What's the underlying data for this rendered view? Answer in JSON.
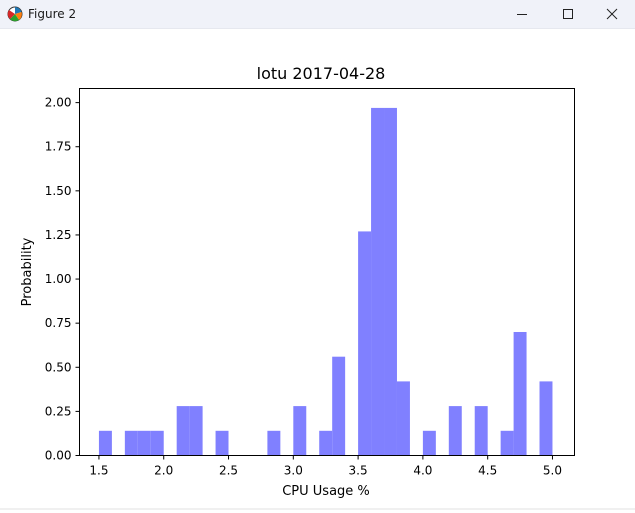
{
  "window": {
    "title": "Figure 2",
    "app_icon": "matplotlib-figure-icon",
    "controls": [
      "minimize-icon",
      "maximize-icon",
      "close-icon"
    ]
  },
  "chart_data": {
    "type": "bar",
    "title": "lotu 2017-04-28",
    "xlabel": "CPU Usage %",
    "ylabel": "Probability",
    "xlim": [
      1.35,
      5.17
    ],
    "ylim": [
      0.0,
      2.08
    ],
    "xticks": [
      1.5,
      2.0,
      2.5,
      3.0,
      3.5,
      4.0,
      4.5,
      5.0
    ],
    "xtick_labels": [
      "1.5",
      "2.0",
      "2.5",
      "3.0",
      "3.5",
      "4.0",
      "4.5",
      "5.0"
    ],
    "yticks": [
      0.0,
      0.25,
      0.5,
      0.75,
      1.0,
      1.25,
      1.5,
      1.75,
      2.0
    ],
    "ytick_labels": [
      "0.00",
      "0.25",
      "0.50",
      "0.75",
      "1.00",
      "1.25",
      "1.50",
      "1.75",
      "2.00"
    ],
    "color": "#8080ff",
    "bin_width": 0.1,
    "bins": [
      {
        "x0": 1.5,
        "x1": 1.6,
        "value": 0.14
      },
      {
        "x0": 1.7,
        "x1": 1.8,
        "value": 0.14
      },
      {
        "x0": 1.8,
        "x1": 1.9,
        "value": 0.14
      },
      {
        "x0": 1.9,
        "x1": 2.0,
        "value": 0.14
      },
      {
        "x0": 2.1,
        "x1": 2.2,
        "value": 0.28
      },
      {
        "x0": 2.2,
        "x1": 2.3,
        "value": 0.28
      },
      {
        "x0": 2.4,
        "x1": 2.5,
        "value": 0.14
      },
      {
        "x0": 2.8,
        "x1": 2.9,
        "value": 0.14
      },
      {
        "x0": 3.0,
        "x1": 3.1,
        "value": 0.28
      },
      {
        "x0": 3.2,
        "x1": 3.3,
        "value": 0.14
      },
      {
        "x0": 3.3,
        "x1": 3.4,
        "value": 0.56
      },
      {
        "x0": 3.5,
        "x1": 3.6,
        "value": 1.27
      },
      {
        "x0": 3.6,
        "x1": 3.7,
        "value": 1.97
      },
      {
        "x0": 3.7,
        "x1": 3.8,
        "value": 1.97
      },
      {
        "x0": 3.8,
        "x1": 3.9,
        "value": 0.42
      },
      {
        "x0": 4.0,
        "x1": 4.1,
        "value": 0.14
      },
      {
        "x0": 4.2,
        "x1": 4.3,
        "value": 0.28
      },
      {
        "x0": 4.4,
        "x1": 4.5,
        "value": 0.28
      },
      {
        "x0": 4.6,
        "x1": 4.7,
        "value": 0.14
      },
      {
        "x0": 4.7,
        "x1": 4.8,
        "value": 0.7
      },
      {
        "x0": 4.9,
        "x1": 5.0,
        "value": 0.42
      }
    ],
    "grid": false,
    "legend": "none"
  }
}
